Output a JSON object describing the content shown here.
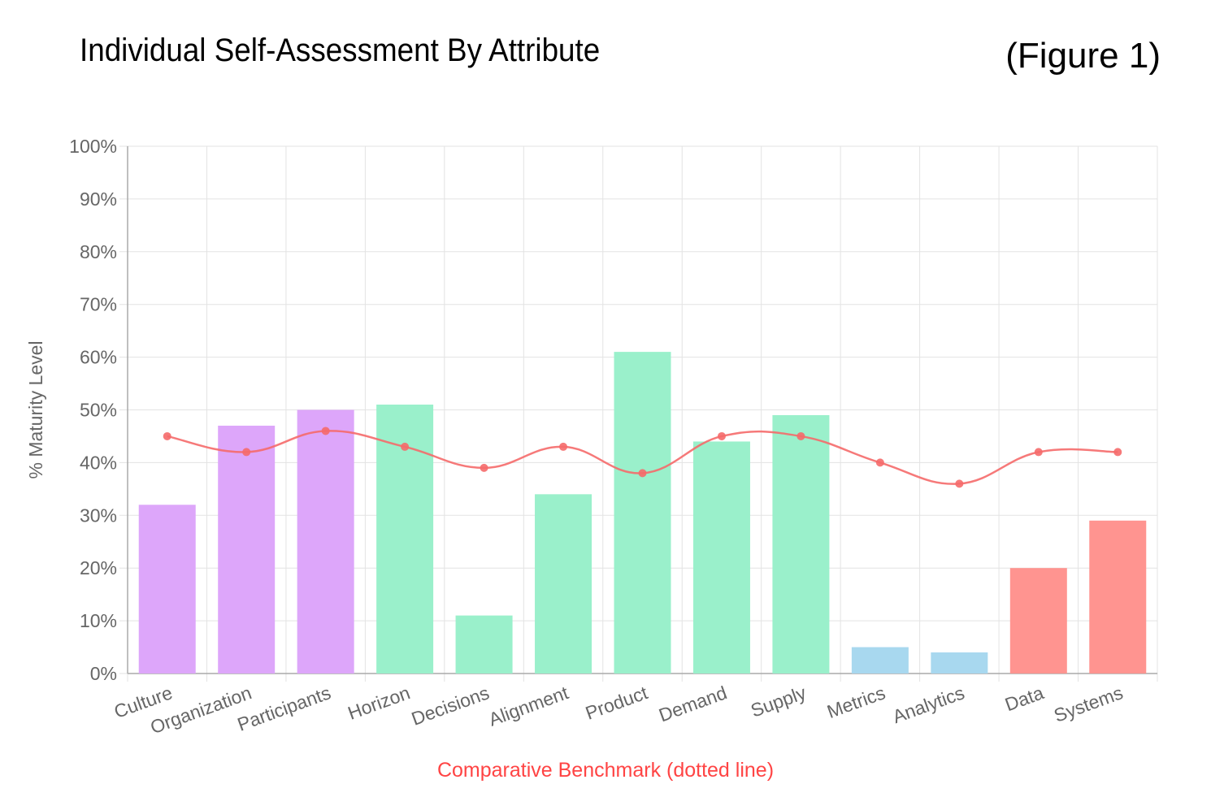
{
  "title": "Individual Self-Assessment By Attribute",
  "figure_label": "(Figure 1)",
  "footer": "Comparative Benchmark (dotted line)",
  "chart_data": {
    "type": "bar",
    "ylabel": "% Maturity Level",
    "xlabel": "",
    "ylim": [
      0,
      100
    ],
    "yticks": [
      "0%",
      "10%",
      "20%",
      "30%",
      "40%",
      "50%",
      "60%",
      "70%",
      "80%",
      "90%",
      "100%"
    ],
    "grid": true,
    "categories": [
      "Culture",
      "Organization",
      "Participants",
      "Horizon",
      "Decisions",
      "Alignment",
      "Product",
      "Demand",
      "Supply",
      "Metrics",
      "Analytics",
      "Data",
      "Systems"
    ],
    "series": [
      {
        "type": "bar",
        "values": [
          32,
          47,
          50,
          51,
          11,
          34,
          61,
          44,
          49,
          5,
          4,
          20,
          29
        ],
        "colors": [
          "#dda6fa",
          "#dda6fa",
          "#dda6fa",
          "#9af0cb",
          "#9af0cb",
          "#9af0cb",
          "#9af0cb",
          "#9af0cb",
          "#9af0cb",
          "#a8d8ef",
          "#a8d8ef",
          "#ff9490",
          "#ff9490"
        ]
      },
      {
        "type": "line",
        "name": "Comparative Benchmark",
        "values": [
          45,
          42,
          46,
          43,
          39,
          43,
          38,
          45,
          45,
          40,
          36,
          42,
          42
        ],
        "color": "#f56a6a"
      }
    ]
  }
}
